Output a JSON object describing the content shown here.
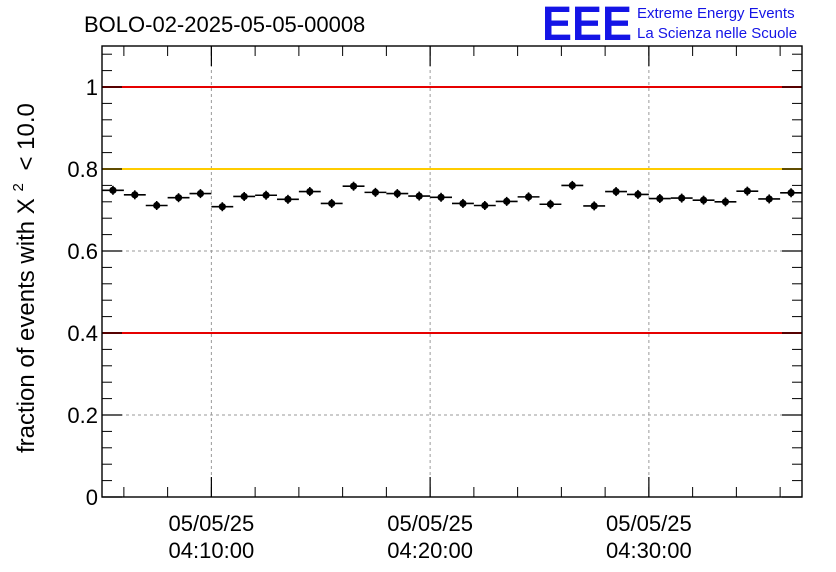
{
  "chart_data": {
    "type": "scatter",
    "title": "BOLO-02-2025-05-05-00008",
    "ylabel_text": "fraction of events with",
    "ylabel_chi": "X",
    "ylabel_sup": "2",
    "ylabel_tail": "< 10.0",
    "ylim": [
      0,
      1.1
    ],
    "yticks": [
      0,
      0.2,
      0.4,
      0.6,
      0.8,
      1
    ],
    "ytick_labels": [
      "0",
      "0.2",
      "0.4",
      "0.6",
      "0.8",
      "1"
    ],
    "xlim_minutes": [
      0,
      32
    ],
    "xticks": [
      {
        "minute": 5,
        "date": "05/05/25",
        "time": "04:10:00"
      },
      {
        "minute": 15,
        "date": "05/05/25",
        "time": "04:20:00"
      },
      {
        "minute": 25,
        "date": "05/05/25",
        "time": "04:30:00"
      }
    ],
    "grid": true,
    "reference_lines": [
      {
        "y": 1.0,
        "color": "#e60000"
      },
      {
        "y": 0.8,
        "color": "#ffcc00"
      },
      {
        "y": 0.4,
        "color": "#e60000"
      }
    ],
    "bin_width_minutes": 1,
    "points": [
      {
        "x": 0.5,
        "y": 0.748
      },
      {
        "x": 1.5,
        "y": 0.737
      },
      {
        "x": 2.5,
        "y": 0.711
      },
      {
        "x": 3.5,
        "y": 0.73
      },
      {
        "x": 4.5,
        "y": 0.74
      },
      {
        "x": 5.5,
        "y": 0.708
      },
      {
        "x": 6.5,
        "y": 0.733
      },
      {
        "x": 7.5,
        "y": 0.736
      },
      {
        "x": 8.5,
        "y": 0.726
      },
      {
        "x": 9.5,
        "y": 0.745
      },
      {
        "x": 10.5,
        "y": 0.716
      },
      {
        "x": 11.5,
        "y": 0.758
      },
      {
        "x": 12.5,
        "y": 0.743
      },
      {
        "x": 13.5,
        "y": 0.74
      },
      {
        "x": 14.5,
        "y": 0.734
      },
      {
        "x": 15.5,
        "y": 0.731
      },
      {
        "x": 16.5,
        "y": 0.716
      },
      {
        "x": 17.5,
        "y": 0.711
      },
      {
        "x": 18.5,
        "y": 0.721
      },
      {
        "x": 19.5,
        "y": 0.732
      },
      {
        "x": 20.5,
        "y": 0.714
      },
      {
        "x": 21.5,
        "y": 0.76
      },
      {
        "x": 22.5,
        "y": 0.71
      },
      {
        "x": 23.5,
        "y": 0.745
      },
      {
        "x": 24.5,
        "y": 0.738
      },
      {
        "x": 25.5,
        "y": 0.728
      },
      {
        "x": 26.5,
        "y": 0.729
      },
      {
        "x": 27.5,
        "y": 0.724
      },
      {
        "x": 28.5,
        "y": 0.72
      },
      {
        "x": 29.5,
        "y": 0.746
      },
      {
        "x": 30.5,
        "y": 0.727
      },
      {
        "x": 31.5,
        "y": 0.742
      }
    ]
  },
  "logo": {
    "text": "EEE",
    "line1": "Extreme Energy Events",
    "line2": "La Scienza nelle Scuole"
  },
  "colors": {
    "axis": "#000000",
    "grid": "#9a9a9a",
    "marker": "#000000",
    "logo": "#1414e6"
  }
}
